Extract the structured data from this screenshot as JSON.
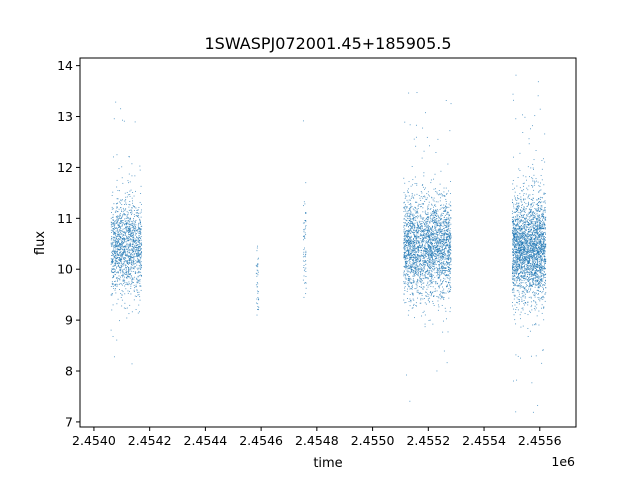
{
  "chart_data": {
    "type": "scatter",
    "title": "1SWASPJ072001.45+185905.5",
    "xlabel": "time",
    "ylabel": "flux",
    "x_offset_label": "1e6",
    "xlim": [
      2.45395,
      2.45573
    ],
    "ylim": [
      6.9,
      14.15
    ],
    "x_tick_values": [
      2.454,
      2.4542,
      2.4544,
      2.4546,
      2.4548,
      2.455,
      2.4552,
      2.4554,
      2.4556
    ],
    "x_tick_labels": [
      "2.4540",
      "2.4542",
      "2.4544",
      "2.4546",
      "2.4548",
      "2.4550",
      "2.4552",
      "2.4554",
      "2.4556"
    ],
    "y_tick_values": [
      7,
      8,
      9,
      10,
      11,
      12,
      13,
      14
    ],
    "y_tick_labels": [
      "7",
      "8",
      "9",
      "10",
      "11",
      "12",
      "13",
      "14"
    ],
    "grid": false,
    "marker_color": "#1f77b4",
    "clusters": [
      {
        "x_range": [
          2.45406,
          2.45417
        ],
        "y_center": 10.45,
        "y_spread": 0.45,
        "points": 1400
      },
      {
        "x_range": [
          2.45458,
          2.45459
        ],
        "y_center": 9.7,
        "y_spread": 0.45,
        "points": 40
      },
      {
        "x_range": [
          2.45475,
          2.45476
        ],
        "y_center": 10.5,
        "y_spread": 0.45,
        "points": 60
      },
      {
        "x_range": [
          2.45511,
          2.45528
        ],
        "y_center": 10.45,
        "y_spread": 0.5,
        "points": 2600
      },
      {
        "x_range": [
          2.4555,
          2.45562
        ],
        "y_center": 10.45,
        "y_spread": 0.5,
        "points": 2600
      }
    ]
  }
}
